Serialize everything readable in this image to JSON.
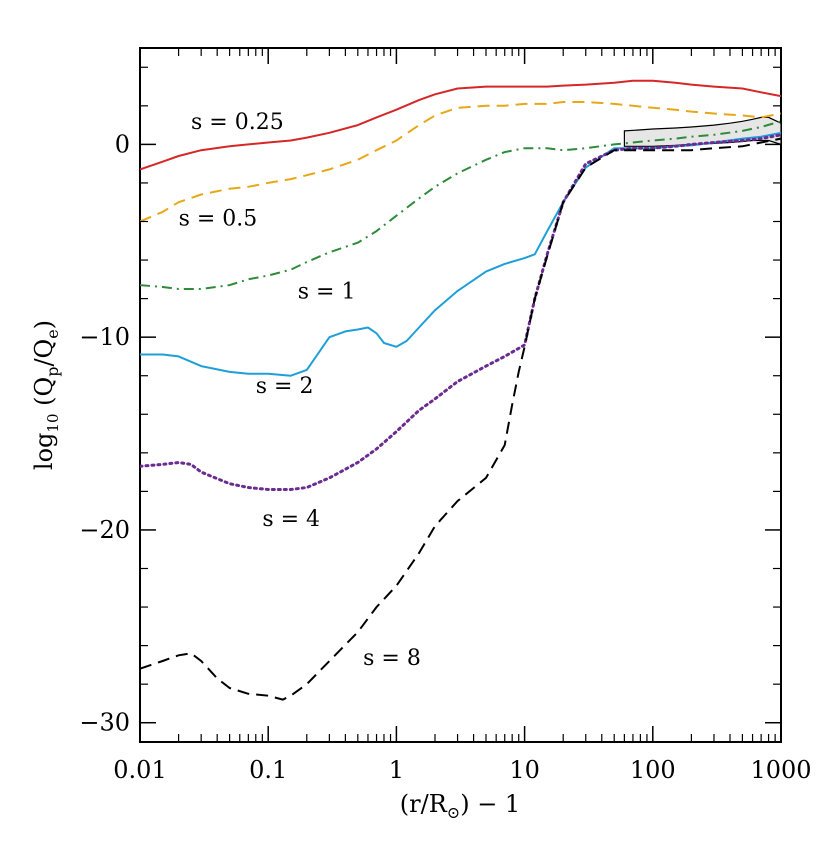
{
  "chart_data": {
    "type": "line",
    "xscale": "log",
    "xlim": [
      0.01,
      1000
    ],
    "ylim": [
      -31,
      5
    ],
    "grid": false,
    "legend": "none",
    "xlabel": "(r/R⊙) − 1",
    "ylabel": "log10 (Qp/Qe)",
    "ylabel_parts": {
      "a": "log",
      "b": "10",
      "c": " (Q",
      "d": "p",
      "e": "/Q",
      "f": "e",
      "g": ")"
    },
    "xlabel_parts": {
      "a": "(r/R",
      "b": "⊙",
      "c": ") − 1"
    },
    "x_ticks": [
      {
        "value": 0.01,
        "label": "0.01"
      },
      {
        "value": 0.1,
        "label": "0.1"
      },
      {
        "value": 1,
        "label": "1"
      },
      {
        "value": 10,
        "label": "10"
      },
      {
        "value": 100,
        "label": "100"
      },
      {
        "value": 1000,
        "label": "1000"
      }
    ],
    "y_ticks": [
      {
        "value": 0,
        "label": "0"
      },
      {
        "value": -10,
        "label": "−10"
      },
      {
        "value": -20,
        "label": "−20"
      },
      {
        "value": -30,
        "label": "−30"
      }
    ],
    "band": {
      "x": [
        60,
        80,
        100,
        150,
        200,
        300,
        400,
        500,
        600,
        700,
        800,
        1000
      ],
      "upper": [
        0.7,
        0.75,
        0.8,
        0.85,
        0.9,
        1.0,
        1.1,
        1.2,
        1.3,
        1.4,
        1.4,
        1.1
      ],
      "lower": [
        -0.1,
        -0.1,
        -0.1,
        -0.05,
        0.0,
        0.05,
        0.1,
        0.15,
        0.2,
        0.2,
        0.2,
        0.0
      ]
    },
    "series": [
      {
        "label": "s = 0.25",
        "color": "#d62728",
        "dash": "",
        "label_at": [
          0.025,
          0.8
        ],
        "x": [
          0.01,
          0.015,
          0.02,
          0.03,
          0.05,
          0.07,
          0.1,
          0.15,
          0.2,
          0.3,
          0.5,
          0.7,
          1,
          1.5,
          2,
          3,
          5,
          7,
          10,
          15,
          20,
          30,
          50,
          70,
          100,
          150,
          200,
          300,
          500,
          700,
          1000
        ],
        "y": [
          -1.3,
          -0.9,
          -0.6,
          -0.3,
          -0.1,
          0.0,
          0.1,
          0.2,
          0.35,
          0.6,
          1.0,
          1.4,
          1.8,
          2.3,
          2.6,
          2.9,
          3.0,
          3.0,
          3.0,
          3.0,
          3.05,
          3.1,
          3.2,
          3.3,
          3.3,
          3.2,
          3.1,
          3.0,
          2.9,
          2.7,
          2.5
        ]
      },
      {
        "label": "s = 0.5",
        "color": "#e6a817",
        "dash": "12,7",
        "label_at": [
          0.02,
          -4.2
        ],
        "x": [
          0.01,
          0.015,
          0.02,
          0.03,
          0.05,
          0.07,
          0.1,
          0.15,
          0.2,
          0.3,
          0.5,
          0.7,
          1,
          1.5,
          2,
          3,
          5,
          7,
          10,
          15,
          20,
          30,
          50,
          70,
          100,
          150,
          200,
          300,
          500,
          700,
          1000
        ],
        "y": [
          -4.0,
          -3.5,
          -3.0,
          -2.6,
          -2.3,
          -2.2,
          -2.0,
          -1.8,
          -1.6,
          -1.3,
          -0.8,
          -0.3,
          0.2,
          1.0,
          1.5,
          1.9,
          2.0,
          2.0,
          2.1,
          2.1,
          2.2,
          2.2,
          2.1,
          2.0,
          1.9,
          1.8,
          1.7,
          1.6,
          1.5,
          1.4,
          1.6
        ]
      },
      {
        "label": "s = 1",
        "color": "#2e8b3a",
        "dash": "10,5,2,5",
        "label_at": [
          0.17,
          -8.0
        ],
        "x": [
          0.01,
          0.015,
          0.02,
          0.03,
          0.05,
          0.07,
          0.1,
          0.15,
          0.2,
          0.3,
          0.5,
          0.7,
          1,
          1.5,
          2,
          3,
          5,
          7,
          10,
          15,
          20,
          30,
          50,
          70,
          100,
          150,
          200,
          300,
          500,
          700,
          1000
        ],
        "y": [
          -7.3,
          -7.4,
          -7.5,
          -7.5,
          -7.3,
          -7.0,
          -6.8,
          -6.5,
          -6.1,
          -5.6,
          -5.1,
          -4.5,
          -3.7,
          -2.8,
          -2.2,
          -1.5,
          -0.8,
          -0.4,
          -0.2,
          -0.2,
          -0.3,
          -0.2,
          0.0,
          0.1,
          0.2,
          0.3,
          0.4,
          0.5,
          0.7,
          0.9,
          1.2
        ]
      },
      {
        "label": "s = 2",
        "color": "#1f9fd9",
        "dash": "",
        "label_at": [
          0.08,
          -12.9
        ],
        "x": [
          0.01,
          0.015,
          0.02,
          0.03,
          0.05,
          0.07,
          0.1,
          0.15,
          0.2,
          0.3,
          0.4,
          0.5,
          0.6,
          0.7,
          0.8,
          1.0,
          1.2,
          1.5,
          2,
          3,
          5,
          7,
          10,
          12,
          15,
          20,
          30,
          50,
          70,
          100,
          150,
          200,
          300,
          500,
          700,
          1000
        ],
        "y": [
          -10.9,
          -10.9,
          -11.0,
          -11.5,
          -11.8,
          -11.9,
          -11.9,
          -12.0,
          -11.7,
          -10.0,
          -9.7,
          -9.6,
          -9.5,
          -9.8,
          -10.3,
          -10.5,
          -10.2,
          -9.5,
          -8.6,
          -7.6,
          -6.6,
          -6.2,
          -5.9,
          -5.7,
          -4.5,
          -3.0,
          -1.2,
          -0.2,
          -0.2,
          -0.2,
          -0.1,
          -0.05,
          0.1,
          0.3,
          0.4,
          0.6
        ]
      },
      {
        "label": "s = 4",
        "color": "#6a2c91",
        "dash": "2,4",
        "label_at": [
          0.09,
          -19.8
        ],
        "x": [
          0.01,
          0.015,
          0.02,
          0.025,
          0.03,
          0.05,
          0.07,
          0.1,
          0.15,
          0.2,
          0.3,
          0.5,
          0.7,
          1,
          1.5,
          2,
          3,
          5,
          7,
          10,
          12,
          15,
          20,
          30,
          50,
          70,
          100,
          150,
          200,
          300,
          500,
          700,
          1000
        ],
        "y": [
          -16.7,
          -16.6,
          -16.5,
          -16.6,
          -17.0,
          -17.6,
          -17.8,
          -17.9,
          -17.9,
          -17.8,
          -17.3,
          -16.5,
          -15.8,
          -14.9,
          -13.8,
          -13.2,
          -12.3,
          -11.5,
          -11.0,
          -10.4,
          -8.0,
          -5.7,
          -3.0,
          -1.0,
          -0.3,
          -0.2,
          -0.2,
          -0.1,
          0.0,
          0.1,
          0.2,
          0.3,
          0.5
        ]
      },
      {
        "label": "s = 8",
        "color": "#000000",
        "dash": "12,7",
        "label_at": [
          0.55,
          -27.0
        ],
        "x": [
          0.01,
          0.015,
          0.02,
          0.025,
          0.03,
          0.04,
          0.05,
          0.07,
          0.1,
          0.13,
          0.15,
          0.2,
          0.3,
          0.5,
          0.7,
          1,
          1.5,
          2,
          3,
          5,
          7,
          8,
          9,
          10,
          12,
          15,
          20,
          30,
          50,
          70,
          100,
          150,
          200,
          300,
          500,
          700,
          1000
        ],
        "y": [
          -27.2,
          -26.8,
          -26.5,
          -26.4,
          -26.8,
          -27.7,
          -28.2,
          -28.5,
          -28.6,
          -28.8,
          -28.6,
          -28.0,
          -26.8,
          -25.3,
          -24.0,
          -22.9,
          -21.2,
          -19.8,
          -18.5,
          -17.3,
          -15.6,
          -13.5,
          -11.8,
          -10.5,
          -8.0,
          -5.8,
          -3.0,
          -1.2,
          -0.3,
          -0.3,
          -0.3,
          -0.3,
          -0.3,
          -0.2,
          -0.1,
          0.1,
          0.3
        ]
      }
    ]
  }
}
